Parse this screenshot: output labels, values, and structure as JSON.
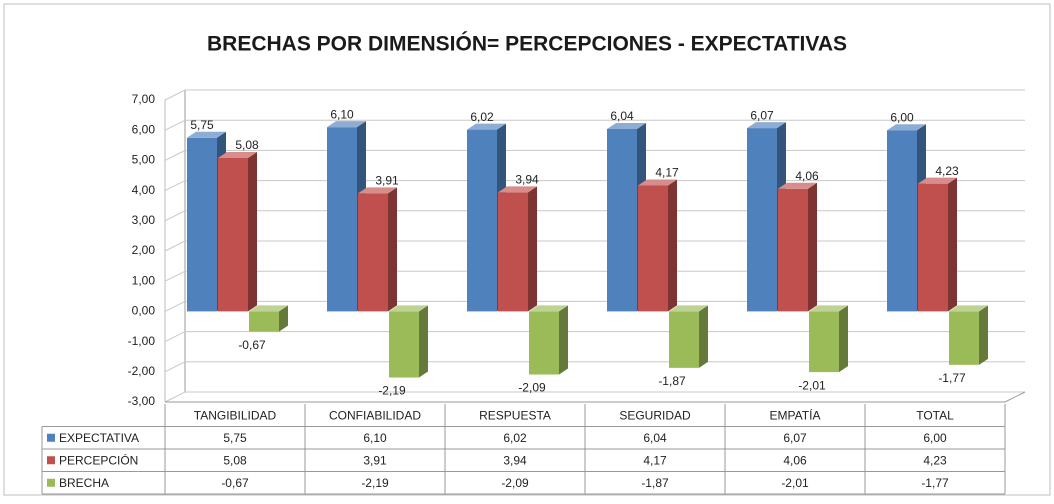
{
  "chart_data": {
    "type": "bar3d",
    "title": "BRECHAS POR DIMENSIÓN= PERCEPCIONES - EXPECTATIVAS",
    "categories": [
      "TANGIBILIDAD",
      "CONFIABILIDAD",
      "RESPUESTA",
      "SEGURIDAD",
      "EMPATÍA",
      "TOTAL"
    ],
    "series": [
      {
        "name": "EXPECTATIVA",
        "color": "#4f81bd",
        "values": [
          5.75,
          6.1,
          6.02,
          6.04,
          6.07,
          6.0
        ],
        "value_labels": [
          "5,75",
          "6,10",
          "6,02",
          "6,04",
          "6,07",
          "6,00"
        ]
      },
      {
        "name": "PERCEPCIÓN",
        "color": "#c0504d",
        "values": [
          5.08,
          3.91,
          3.94,
          4.17,
          4.06,
          4.23
        ],
        "value_labels": [
          "5,08",
          "3,91",
          "3,94",
          "4,17",
          "4,06",
          "4,23"
        ]
      },
      {
        "name": "BRECHA",
        "color": "#9bbb59",
        "values": [
          -0.67,
          -2.19,
          -2.09,
          -1.87,
          -2.01,
          -1.77
        ],
        "value_labels": [
          "-0,67",
          "-2,19",
          "-2,09",
          "-1,87",
          "-2,01",
          "-1,77"
        ]
      }
    ],
    "ylim": [
      -3,
      7
    ],
    "yticks": [
      {
        "value": -3,
        "label": "-3,00"
      },
      {
        "value": -2,
        "label": "-2,00"
      },
      {
        "value": -1,
        "label": "-1,00"
      },
      {
        "value": 0,
        "label": "0,00"
      },
      {
        "value": 1,
        "label": "1,00"
      },
      {
        "value": 2,
        "label": "2,00"
      },
      {
        "value": 3,
        "label": "3,00"
      },
      {
        "value": 4,
        "label": "4,00"
      },
      {
        "value": 5,
        "label": "5,00"
      },
      {
        "value": 6,
        "label": "6,00"
      },
      {
        "value": 7,
        "label": "7,00"
      }
    ],
    "grid": true,
    "data_table": true
  }
}
